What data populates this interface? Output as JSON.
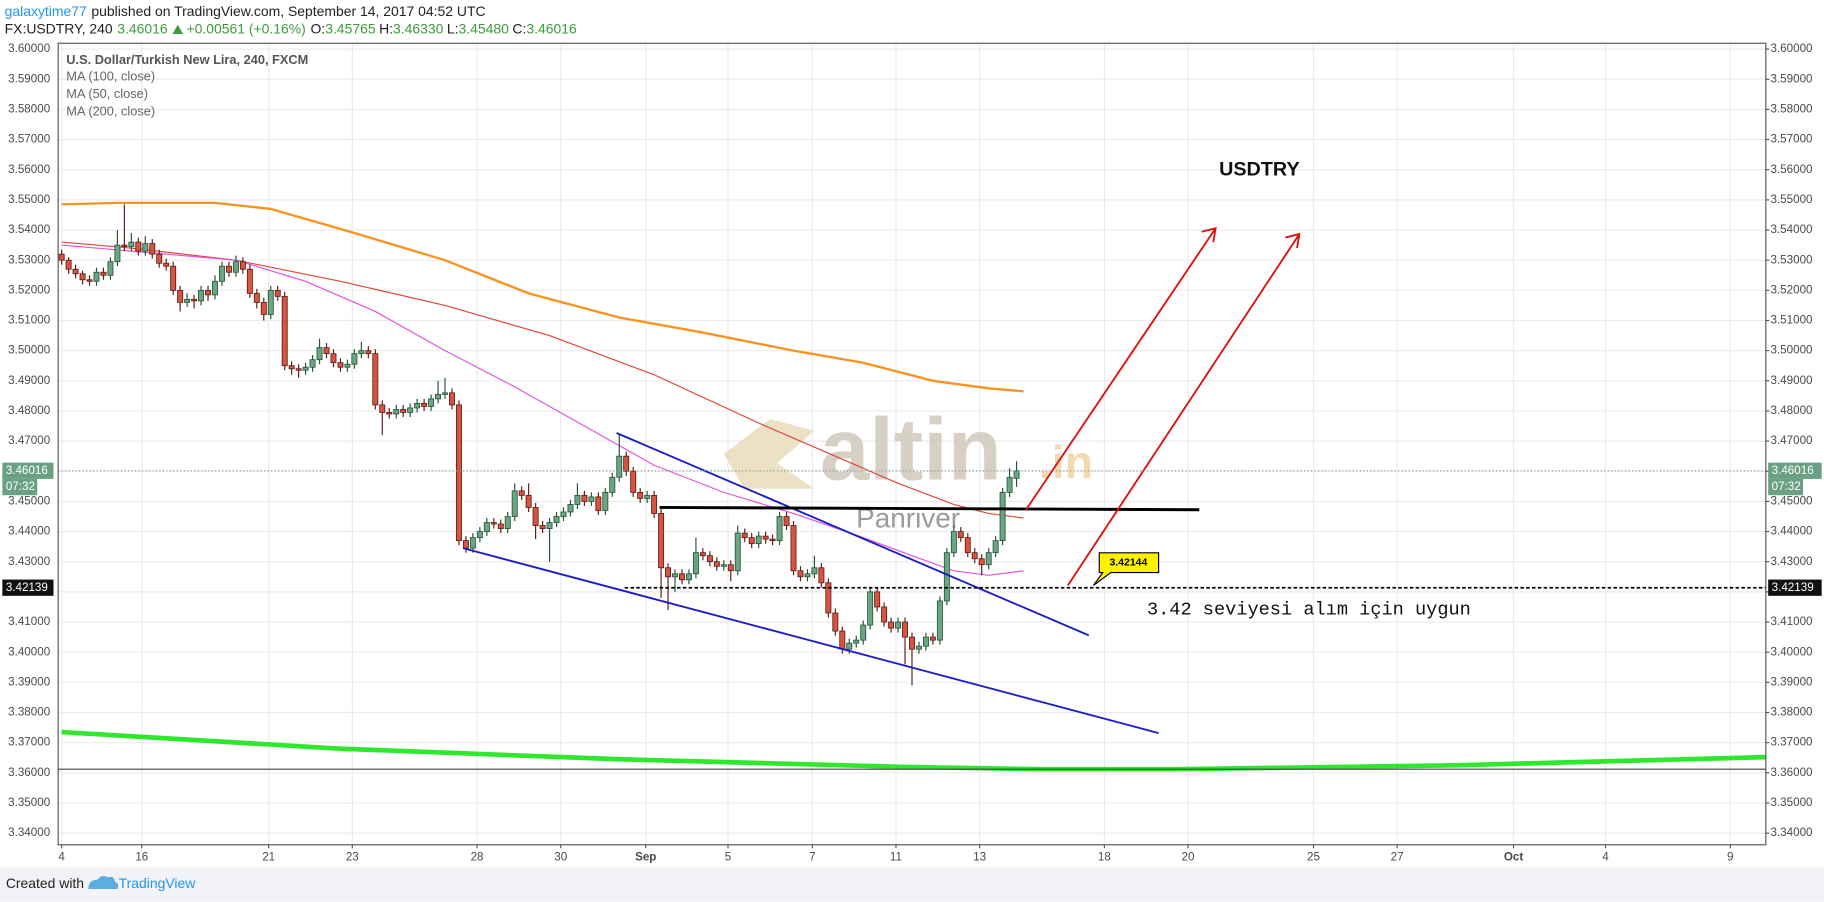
{
  "header": {
    "publisher": "galaxytime77",
    "published": "published on TradingView.com, September 14, 2017 04:52 UTC",
    "symbol": "FX:USDTRY, 240",
    "change": "+0.00561 (+0.16%)",
    "open_label": "O:",
    "open": "3.45765",
    "high_label": "H:",
    "high": "3.46330",
    "low_label": "L:",
    "low": "3.45480",
    "close_label": "C:"
  },
  "footer": {
    "created": "Created with",
    "brand": "TradingView"
  },
  "watermark": {
    "brand": "altin",
    "tld": ".in",
    "sub": "Panriver"
  },
  "chart_data": {
    "type": "candlestick",
    "title": "U.S. Dollar/Turkish New Lira, 240, FXCM",
    "up_color": "#6ba583",
    "down_color": "#d75442",
    "grid": true,
    "last_price": 3.46016,
    "countdown": "07:32",
    "level": 3.42139,
    "callout": 3.42144,
    "annotations": {
      "symbol": "USDTRY",
      "note": "3.42 seviyesi alım için uygun"
    },
    "xlim": [
      -0.5,
      244.5
    ],
    "xticks": [
      {
        "value": 0,
        "label": "4"
      },
      {
        "value": 11.5,
        "label": "16"
      },
      {
        "value": 29.7,
        "label": "21"
      },
      {
        "value": 41.7,
        "label": "23"
      },
      {
        "value": 59.6,
        "label": "28"
      },
      {
        "value": 71.6,
        "label": "30"
      },
      {
        "value": 83.8,
        "label": "Sep"
      },
      {
        "value": 95.6,
        "label": "5"
      },
      {
        "value": 107.7,
        "label": "7"
      },
      {
        "value": 119.7,
        "label": "11"
      },
      {
        "value": 131.7,
        "label": "13"
      },
      {
        "value": 149.6,
        "label": "18"
      },
      {
        "value": 161.6,
        "label": "20"
      },
      {
        "value": 179.6,
        "label": "25"
      },
      {
        "value": 191.6,
        "label": "27"
      },
      {
        "value": 208.3,
        "label": "Oct"
      },
      {
        "value": 221.5,
        "label": "4"
      },
      {
        "value": 239.4,
        "label": "9"
      }
    ],
    "ylim": [
      3.33614,
      3.60193
    ],
    "yticks": [
      {
        "value": 3.34,
        "label": "3.34000"
      },
      {
        "value": 3.35,
        "label": "3.35000"
      },
      {
        "value": 3.36,
        "label": "3.36000"
      },
      {
        "value": 3.37,
        "label": "3.37000"
      },
      {
        "value": 3.38,
        "label": "3.38000"
      },
      {
        "value": 3.39,
        "label": "3.39000"
      },
      {
        "value": 3.4,
        "label": "3.40000"
      },
      {
        "value": 3.41,
        "label": "3.41000"
      },
      {
        "value": 3.42,
        "label": "3.42000"
      },
      {
        "value": 3.43,
        "label": "3.43000"
      },
      {
        "value": 3.44,
        "label": "3.44000"
      },
      {
        "value": 3.45,
        "label": "3.45000"
      },
      {
        "value": 3.46,
        "label": "3.46000"
      },
      {
        "value": 3.47,
        "label": "3.47000"
      },
      {
        "value": 3.48,
        "label": "3.48000"
      },
      {
        "value": 3.49,
        "label": "3.49000"
      },
      {
        "value": 3.5,
        "label": "3.50000"
      },
      {
        "value": 3.51,
        "label": "3.51000"
      },
      {
        "value": 3.52,
        "label": "3.52000"
      },
      {
        "value": 3.53,
        "label": "3.53000"
      },
      {
        "value": 3.54,
        "label": "3.54000"
      },
      {
        "value": 3.55,
        "label": "3.55000"
      },
      {
        "value": 3.56,
        "label": "3.56000"
      },
      {
        "value": 3.57,
        "label": "3.57000"
      },
      {
        "value": 3.58,
        "label": "3.58000"
      },
      {
        "value": 3.59,
        "label": "3.59000"
      },
      {
        "value": 3.6,
        "label": "3.60000"
      }
    ],
    "candles": [
      [
        3.532,
        3.5335,
        3.5285,
        3.53
      ],
      [
        3.53,
        3.531,
        3.5255,
        3.527
      ],
      [
        3.527,
        3.5285,
        3.524,
        3.5255
      ],
      [
        3.5255,
        3.5265,
        3.522,
        3.5235
      ],
      [
        3.5235,
        3.525,
        3.5215,
        3.523
      ],
      [
        3.523,
        3.5275,
        3.5215,
        3.526
      ],
      [
        3.526,
        3.5275,
        3.5235,
        3.525
      ],
      [
        3.525,
        3.531,
        3.5235,
        3.5295
      ],
      [
        3.5295,
        3.54,
        3.528,
        3.535
      ],
      [
        3.535,
        3.5485,
        3.533,
        3.5345
      ],
      [
        3.5345,
        3.539,
        3.533,
        3.536
      ],
      [
        3.536,
        3.5375,
        3.5315,
        3.533
      ],
      [
        3.533,
        3.538,
        3.5315,
        3.5355
      ],
      [
        3.5355,
        3.537,
        3.5305,
        3.532
      ],
      [
        3.532,
        3.5335,
        3.5275,
        3.529
      ],
      [
        3.529,
        3.5305,
        3.5265,
        3.528
      ],
      [
        3.528,
        3.5295,
        3.5185,
        3.52
      ],
      [
        3.52,
        3.5215,
        3.513,
        3.516
      ],
      [
        3.516,
        3.519,
        3.5145,
        3.517
      ],
      [
        3.517,
        3.5185,
        3.514,
        3.5165
      ],
      [
        3.5165,
        3.5215,
        3.515,
        3.52
      ],
      [
        3.52,
        3.5215,
        3.5165,
        3.5185
      ],
      [
        3.5185,
        3.525,
        3.517,
        3.523
      ],
      [
        3.523,
        3.5295,
        3.5215,
        3.528
      ],
      [
        3.528,
        3.5295,
        3.5245,
        3.526
      ],
      [
        3.526,
        3.5315,
        3.5245,
        3.5295
      ],
      [
        3.5295,
        3.531,
        3.5255,
        3.527
      ],
      [
        3.527,
        3.5285,
        3.5175,
        3.519
      ],
      [
        3.519,
        3.5205,
        3.514,
        3.516
      ],
      [
        3.516,
        3.5175,
        3.51,
        3.512
      ],
      [
        3.512,
        3.5215,
        3.5105,
        3.52
      ],
      [
        3.52,
        3.5215,
        3.5165,
        3.518
      ],
      [
        3.518,
        3.5195,
        3.4935,
        3.495
      ],
      [
        3.495,
        3.4965,
        3.492,
        3.494
      ],
      [
        3.494,
        3.4955,
        3.491,
        3.4935
      ],
      [
        3.4935,
        3.496,
        3.492,
        3.4945
      ],
      [
        3.4945,
        3.4985,
        3.493,
        3.497
      ],
      [
        3.497,
        3.504,
        3.4955,
        3.501
      ],
      [
        3.501,
        3.5025,
        3.4975,
        3.499
      ],
      [
        3.499,
        3.5005,
        3.4945,
        3.496
      ],
      [
        3.496,
        3.4975,
        3.493,
        3.4945
      ],
      [
        3.4945,
        3.497,
        3.493,
        3.4955
      ],
      [
        3.4955,
        3.5005,
        3.494,
        3.499
      ],
      [
        3.499,
        3.503,
        3.4975,
        3.5
      ],
      [
        3.5,
        3.5015,
        3.4975,
        3.499
      ],
      [
        3.499,
        3.5005,
        3.4805,
        3.482
      ],
      [
        3.482,
        3.4835,
        3.472,
        3.4795
      ],
      [
        3.4795,
        3.481,
        3.4775,
        3.479
      ],
      [
        3.479,
        3.482,
        3.4775,
        3.4805
      ],
      [
        3.4805,
        3.482,
        3.478,
        3.4795
      ],
      [
        3.4795,
        3.4825,
        3.478,
        3.481
      ],
      [
        3.481,
        3.484,
        3.4795,
        3.4825
      ],
      [
        3.4825,
        3.484,
        3.48,
        3.4815
      ],
      [
        3.4815,
        3.4855,
        3.48,
        3.484
      ],
      [
        3.484,
        3.49,
        3.4825,
        3.4855
      ],
      [
        3.4855,
        3.491,
        3.484,
        3.486
      ],
      [
        3.486,
        3.4875,
        3.4805,
        3.482
      ],
      [
        3.482,
        3.4835,
        3.4355,
        3.437
      ],
      [
        3.437,
        3.4385,
        3.433,
        3.4345
      ],
      [
        3.4345,
        3.4395,
        3.433,
        3.438
      ],
      [
        3.438,
        3.4415,
        3.4365,
        3.44
      ],
      [
        3.44,
        3.4445,
        3.4385,
        3.443
      ],
      [
        3.443,
        3.4445,
        3.441,
        3.4425
      ],
      [
        3.4425,
        3.444,
        3.4395,
        3.441
      ],
      [
        3.441,
        3.4465,
        3.4395,
        3.445
      ],
      [
        3.445,
        3.456,
        3.4435,
        3.4535
      ],
      [
        3.4535,
        3.455,
        3.4505,
        3.452
      ],
      [
        3.452,
        3.456,
        3.4465,
        3.448
      ],
      [
        3.448,
        3.4495,
        3.4375,
        3.442
      ],
      [
        3.442,
        3.4435,
        3.4395,
        3.441
      ],
      [
        3.441,
        3.4445,
        3.43,
        3.443
      ],
      [
        3.443,
        3.4465,
        3.4415,
        3.445
      ],
      [
        3.445,
        3.448,
        3.4435,
        3.4465
      ],
      [
        3.4465,
        3.4505,
        3.445,
        3.449
      ],
      [
        3.449,
        3.456,
        3.4475,
        3.452
      ],
      [
        3.452,
        3.4535,
        3.4485,
        3.45
      ],
      [
        3.45,
        3.453,
        3.4485,
        3.4515
      ],
      [
        3.4515,
        3.453,
        3.4455,
        3.447
      ],
      [
        3.447,
        3.4545,
        3.4455,
        3.453
      ],
      [
        3.453,
        3.4595,
        3.4515,
        3.458
      ],
      [
        3.458,
        3.4725,
        3.4565,
        3.465
      ],
      [
        3.465,
        3.4665,
        3.4585,
        3.46
      ],
      [
        3.46,
        3.4615,
        3.4515,
        3.453
      ],
      [
        3.453,
        3.4545,
        3.4495,
        3.451
      ],
      [
        3.451,
        3.4535,
        3.4495,
        3.452
      ],
      [
        3.452,
        3.4535,
        3.4445,
        3.446
      ],
      [
        3.446,
        3.4475,
        3.418,
        3.428
      ],
      [
        3.428,
        3.4295,
        3.414,
        3.425
      ],
      [
        3.425,
        3.4275,
        3.42,
        3.426
      ],
      [
        3.426,
        3.4275,
        3.4225,
        3.424
      ],
      [
        3.424,
        3.4275,
        3.4225,
        3.426
      ],
      [
        3.426,
        3.438,
        3.4245,
        3.433
      ],
      [
        3.433,
        3.4345,
        3.4305,
        3.432
      ],
      [
        3.432,
        3.4335,
        3.4285,
        3.43
      ],
      [
        3.43,
        3.4315,
        3.427,
        3.4285
      ],
      [
        3.4285,
        3.4305,
        3.427,
        3.429
      ],
      [
        3.429,
        3.4305,
        3.4235,
        3.427
      ],
      [
        3.427,
        3.442,
        3.4255,
        3.4395
      ],
      [
        3.4395,
        3.441,
        3.4365,
        3.438
      ],
      [
        3.438,
        3.4395,
        3.4345,
        3.436
      ],
      [
        3.436,
        3.44,
        3.4345,
        3.4385
      ],
      [
        3.4385,
        3.44,
        3.436,
        3.4375
      ],
      [
        3.4375,
        3.439,
        3.4355,
        3.437
      ],
      [
        3.437,
        3.4465,
        3.4355,
        3.445
      ],
      [
        3.445,
        3.4465,
        3.4405,
        3.442
      ],
      [
        3.442,
        3.4435,
        3.4255,
        3.427
      ],
      [
        3.427,
        3.4285,
        3.4235,
        3.425
      ],
      [
        3.425,
        3.4275,
        3.4235,
        3.426
      ],
      [
        3.426,
        3.432,
        3.4245,
        3.428
      ],
      [
        3.428,
        3.4295,
        3.4215,
        3.423
      ],
      [
        3.423,
        3.4245,
        3.4115,
        3.413
      ],
      [
        3.413,
        3.4145,
        3.4055,
        3.407
      ],
      [
        3.407,
        3.4085,
        3.3995,
        3.401
      ],
      [
        3.401,
        3.4045,
        3.3995,
        3.403
      ],
      [
        3.403,
        3.4055,
        3.4015,
        3.404
      ],
      [
        3.404,
        3.4105,
        3.4025,
        3.409
      ],
      [
        3.409,
        3.4215,
        3.4075,
        3.42
      ],
      [
        3.42,
        3.4215,
        3.4135,
        3.415
      ],
      [
        3.415,
        3.4165,
        3.4085,
        3.41
      ],
      [
        3.41,
        3.4115,
        3.4065,
        3.408
      ],
      [
        3.408,
        3.4115,
        3.4065,
        3.41
      ],
      [
        3.41,
        3.4115,
        3.396,
        3.405
      ],
      [
        3.405,
        3.4065,
        3.389,
        3.401
      ],
      [
        3.401,
        3.4035,
        3.3995,
        3.402
      ],
      [
        3.402,
        3.4065,
        3.4005,
        3.405
      ],
      [
        3.405,
        3.4065,
        3.4025,
        3.404
      ],
      [
        3.404,
        3.4185,
        3.4025,
        3.417
      ],
      [
        3.417,
        3.4345,
        3.4155,
        3.433
      ],
      [
        3.433,
        3.442,
        3.4315,
        3.44
      ],
      [
        3.44,
        3.4415,
        3.4365,
        3.438
      ],
      [
        3.438,
        3.4395,
        3.4315,
        3.433
      ],
      [
        3.433,
        3.4345,
        3.4295,
        3.431
      ],
      [
        3.431,
        3.4325,
        3.4255,
        3.429
      ],
      [
        3.429,
        3.4345,
        3.4275,
        3.433
      ],
      [
        3.433,
        3.4385,
        3.4315,
        3.437
      ],
      [
        3.437,
        3.4545,
        3.4355,
        3.453
      ],
      [
        3.453,
        3.461,
        3.4515,
        3.458
      ],
      [
        3.45765,
        3.4633,
        3.4548,
        3.46016
      ]
    ],
    "series": [
      {
        "name": "MA (100, close)",
        "color": "#e0463c",
        "x": [
          0,
          10,
          25,
          40,
          55,
          70,
          85,
          100,
          110,
          120,
          128,
          133,
          138
        ],
        "values": [
          3.536,
          3.534,
          3.53,
          3.523,
          3.515,
          3.505,
          3.492,
          3.476,
          3.466,
          3.456,
          3.449,
          3.446,
          3.4445
        ]
      },
      {
        "name": "MA (50, close)",
        "color": "#e055d8",
        "x": [
          0,
          10,
          25,
          35,
          45,
          55,
          65,
          75,
          85,
          95,
          105,
          115,
          122,
          128,
          133,
          138
        ],
        "values": [
          3.535,
          3.533,
          3.53,
          3.523,
          3.513,
          3.5,
          3.488,
          3.475,
          3.462,
          3.453,
          3.446,
          3.438,
          3.432,
          3.427,
          3.4255,
          3.427
        ]
      },
      {
        "name": "MA (200, close)",
        "color": "#f7931e",
        "x": [
          0,
          8,
          22,
          30,
          42,
          55,
          67,
          80,
          92,
          105,
          115,
          125,
          133,
          138
        ],
        "values": [
          3.5485,
          3.549,
          3.549,
          3.547,
          3.539,
          3.53,
          3.519,
          3.511,
          3.506,
          3.5,
          3.496,
          3.49,
          3.4875,
          3.4865
        ]
      }
    ],
    "lines": [
      {
        "color": "#2ee82e",
        "x": [
          0,
          40,
          80,
          120,
          140,
          160,
          200,
          244.5
        ],
        "values": [
          3.3735,
          3.368,
          3.3645,
          3.362,
          3.3612,
          3.3612,
          3.3625,
          3.3652
        ]
      }
    ]
  }
}
